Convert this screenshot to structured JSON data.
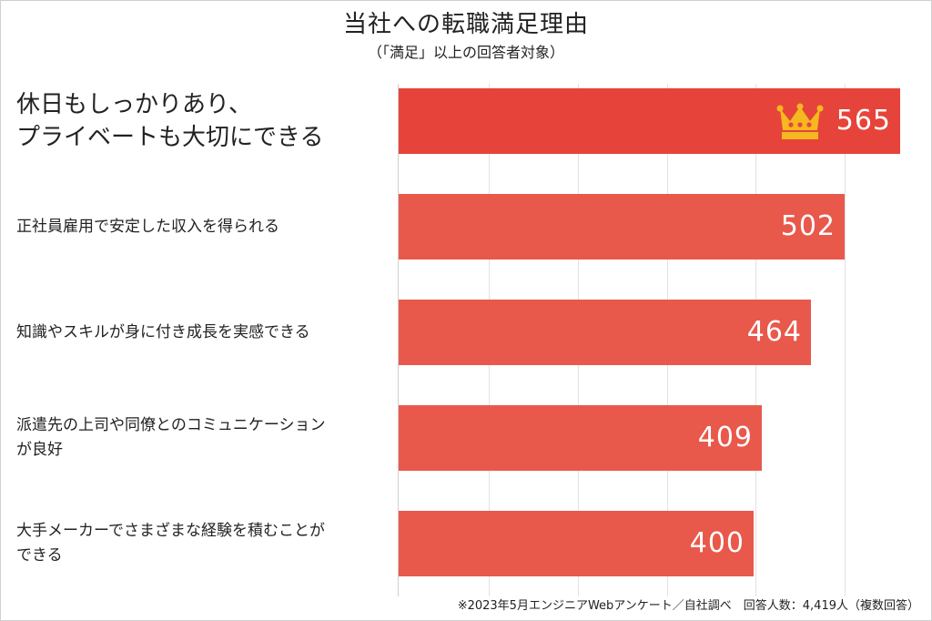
{
  "chart_data": {
    "type": "bar",
    "orientation": "horizontal",
    "title": "当社への転職満足理由",
    "subtitle": "（「満足」以上の回答者対象）",
    "categories": [
      "休日もしっかりあり、\nプライベートも大切にできる",
      "正社員雇用で安定した収入を得られる",
      "知識やスキルが身に付き成長を実感できる",
      "派遣先の上司や同僚とのコミュニケーション\nが良好",
      "大手メーカーでさまざまな経験を積むことが\nできる"
    ],
    "values": [
      565,
      502,
      464,
      409,
      400
    ],
    "xlim": [
      0,
      600
    ],
    "grid": true,
    "highlight": {
      "index": 0,
      "icon": "crown-icon",
      "color": "#e6443a"
    },
    "bar_color": "#e8594b"
  },
  "footnote": "※2023年5月エンジニアWebアンケート／自社調べ　回答人数：4,419人（複数回答）"
}
